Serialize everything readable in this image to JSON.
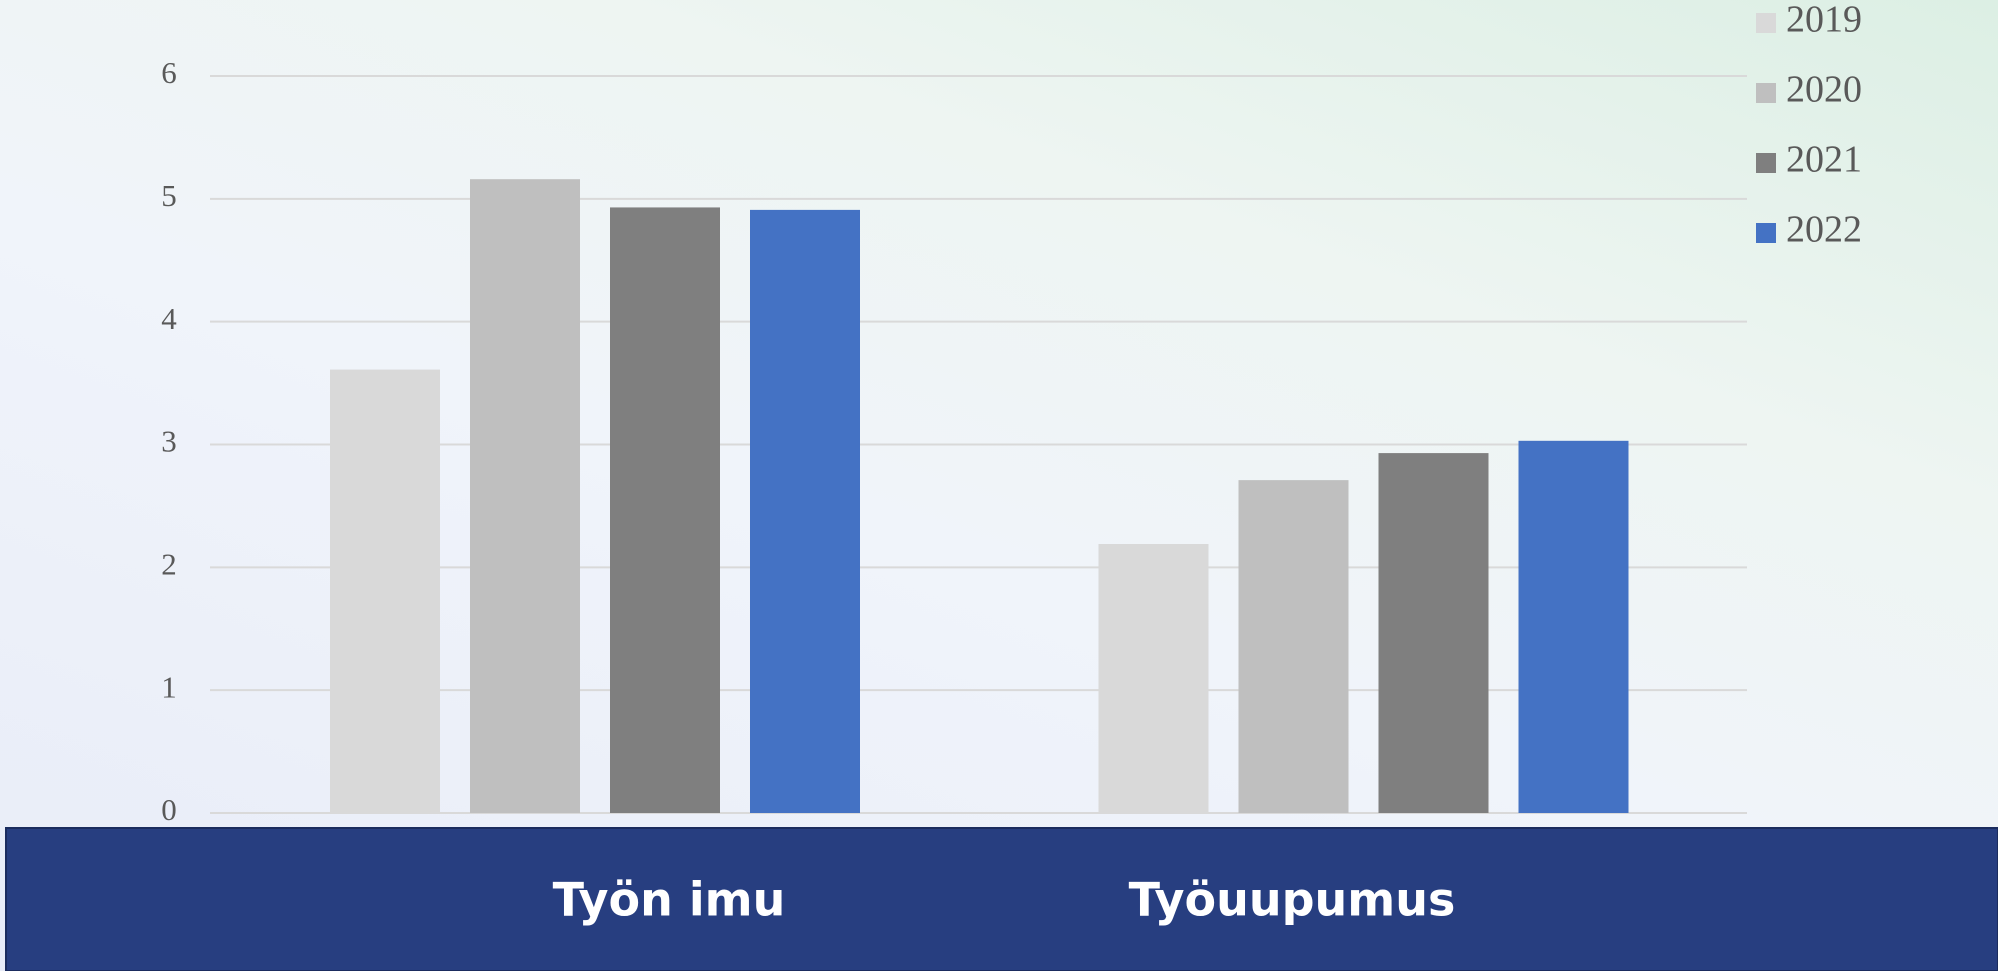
{
  "chart_data": {
    "type": "bar",
    "categories": [
      "Työn imu",
      "Työuupumus"
    ],
    "series": [
      {
        "name": "2019",
        "color": "#d9d9d9",
        "values": [
          3.61,
          2.19
        ]
      },
      {
        "name": "2020",
        "color": "#bfbfbf",
        "values": [
          5.16,
          2.71
        ]
      },
      {
        "name": "2021",
        "color": "#7f7f7f",
        "values": [
          4.93,
          2.93
        ]
      },
      {
        "name": "2022",
        "color": "#4472c4",
        "values": [
          4.91,
          3.03
        ]
      }
    ],
    "ylim": [
      0,
      6
    ],
    "yticks": [
      0,
      1,
      2,
      3,
      4,
      5,
      6
    ],
    "grid": true,
    "legend": "top-right"
  }
}
